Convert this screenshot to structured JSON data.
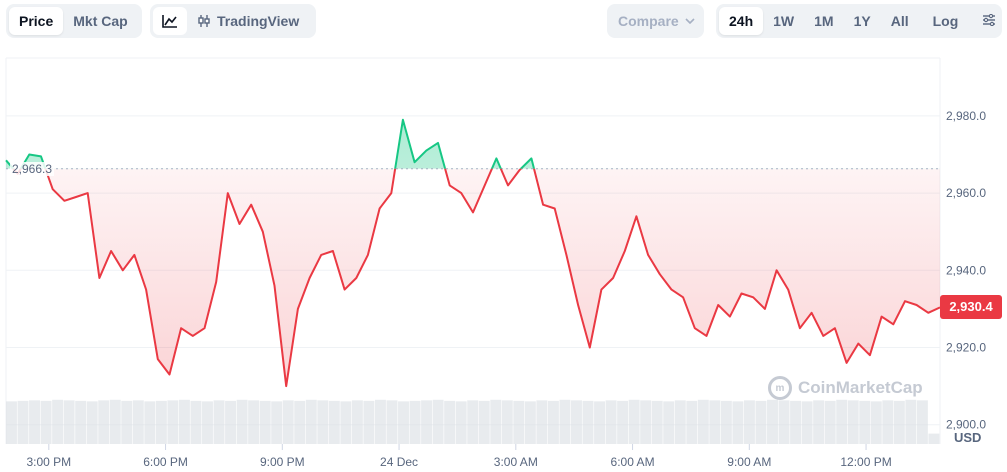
{
  "toolbar": {
    "type_tabs": [
      {
        "label": "Price",
        "active": true
      },
      {
        "label": "Mkt Cap",
        "active": false
      }
    ],
    "tools": {
      "line_icon": "line-chart-icon",
      "tradingview_icon": "candlestick-icon",
      "tradingview_label": "TradingView"
    },
    "compare": {
      "label": "Compare",
      "icon": "chevron-down-icon"
    },
    "ranges": [
      {
        "label": "24h",
        "active": true
      },
      {
        "label": "1W",
        "active": false
      },
      {
        "label": "1M",
        "active": false
      },
      {
        "label": "1Y",
        "active": false
      },
      {
        "label": "All",
        "active": false
      }
    ],
    "log_label": "Log",
    "settings_icon": "sliders-icon"
  },
  "watermark": "CoinMarketCap",
  "colors": {
    "up": "#16c784",
    "down": "#ea3943",
    "grid": "#eff2f5",
    "text": "#58667e"
  },
  "chart_data": {
    "type": "line",
    "reference_price": 2966.3,
    "reference_label": "2,966.3",
    "current_price_label": "2,930.4",
    "current_price": 2930.4,
    "unit": "USD",
    "ylim": [
      2895,
      2995
    ],
    "y_ticks": [
      {
        "value": 2980,
        "label": "2,980.0"
      },
      {
        "value": 2960,
        "label": "2,960.0"
      },
      {
        "value": 2940,
        "label": "2,940.0"
      },
      {
        "value": 2920,
        "label": "2,920.0"
      },
      {
        "value": 2900,
        "label": "2,900.0"
      }
    ],
    "x_ticks": [
      "3:00 PM",
      "6:00 PM",
      "9:00 PM",
      "24 Dec",
      "3:00 AM",
      "6:00 AM",
      "9:00 AM",
      "12:00 PM"
    ],
    "x_tick_hours": [
      1.1,
      4.1,
      7.1,
      10.1,
      13.1,
      16.1,
      19.1,
      22.1
    ],
    "hours_span": 24,
    "series": [
      {
        "hours": [
          0,
          0.3,
          0.6,
          0.9,
          1.2,
          1.5,
          1.8,
          2.1,
          2.4,
          2.7,
          3.0,
          3.3,
          3.6,
          3.9,
          4.2,
          4.5,
          4.8,
          5.1,
          5.4,
          5.7,
          6.0,
          6.3,
          6.6,
          6.9,
          7.2,
          7.5,
          7.8,
          8.1,
          8.4,
          8.7,
          9.0,
          9.3,
          9.6,
          9.9,
          10.2,
          10.5,
          10.8,
          11.1,
          11.4,
          11.7,
          12.0,
          12.3,
          12.6,
          12.9,
          13.2,
          13.5,
          13.8,
          14.1,
          14.4,
          14.7,
          15.0,
          15.3,
          15.6,
          15.9,
          16.2,
          16.5,
          16.8,
          17.1,
          17.4,
          17.7,
          18.0,
          18.3,
          18.6,
          18.9,
          19.2,
          19.5,
          19.8,
          20.1,
          20.4,
          20.7,
          21.0,
          21.3,
          21.6,
          21.9,
          22.2,
          22.5,
          22.8,
          23.1,
          23.4,
          23.7,
          24.0
        ],
        "values": [
          2968.5,
          2965.0,
          2970.0,
          2969.5,
          2961.0,
          2958.0,
          2959.0,
          2960.0,
          2938.0,
          2945.0,
          2940.0,
          2944.0,
          2935.0,
          2917.0,
          2913.0,
          2925.0,
          2923.0,
          2925.0,
          2937.0,
          2960.0,
          2952.0,
          2957.0,
          2950.0,
          2936.0,
          2910.0,
          2930.0,
          2938.0,
          2944.0,
          2945.0,
          2935.0,
          2938.0,
          2944.0,
          2956.0,
          2960.0,
          2979.0,
          2968.0,
          2971.0,
          2973.0,
          2962.0,
          2960.0,
          2955.0,
          2962.0,
          2969.0,
          2962.0,
          2966.0,
          2969.0,
          2957.0,
          2956.0,
          2944.0,
          2931.0,
          2920.0,
          2935.0,
          2938.0,
          2945.0,
          2954.0,
          2944.0,
          2939.0,
          2935.0,
          2933.0,
          2925.0,
          2923.0,
          2931.0,
          2928.0,
          2934.0,
          2933.0,
          2930.0,
          2940.0,
          2935.0,
          2925.0,
          2929.0,
          2923.0,
          2925.0,
          2916.0,
          2921.0,
          2918.0,
          2928.0,
          2926.0,
          2932.0,
          2931.0,
          2929.0,
          2930.4
        ]
      }
    ],
    "volume": {
      "relative_heights": [
        0.82,
        0.83,
        0.84,
        0.83,
        0.85,
        0.84,
        0.83,
        0.82,
        0.84,
        0.85,
        0.83,
        0.84,
        0.82,
        0.83,
        0.84,
        0.85,
        0.83,
        0.82,
        0.84,
        0.83,
        0.85,
        0.84,
        0.83,
        0.82,
        0.84,
        0.83,
        0.85,
        0.84,
        0.83,
        0.82,
        0.84,
        0.83,
        0.85,
        0.84,
        0.82,
        0.83,
        0.84,
        0.85,
        0.83,
        0.82,
        0.84,
        0.83,
        0.85,
        0.84,
        0.83,
        0.82,
        0.84,
        0.83,
        0.85,
        0.84,
        0.83,
        0.82,
        0.84,
        0.83,
        0.85,
        0.84,
        0.83,
        0.82,
        0.84,
        0.83,
        0.85,
        0.84,
        0.83,
        0.82,
        0.84,
        0.83,
        0.85,
        0.84,
        0.83,
        0.82,
        0.84,
        0.83,
        0.85,
        0.84,
        0.83,
        0.82,
        0.84,
        0.83,
        0.85,
        0.84,
        0.2
      ]
    },
    "grid": true,
    "legend": "none"
  }
}
